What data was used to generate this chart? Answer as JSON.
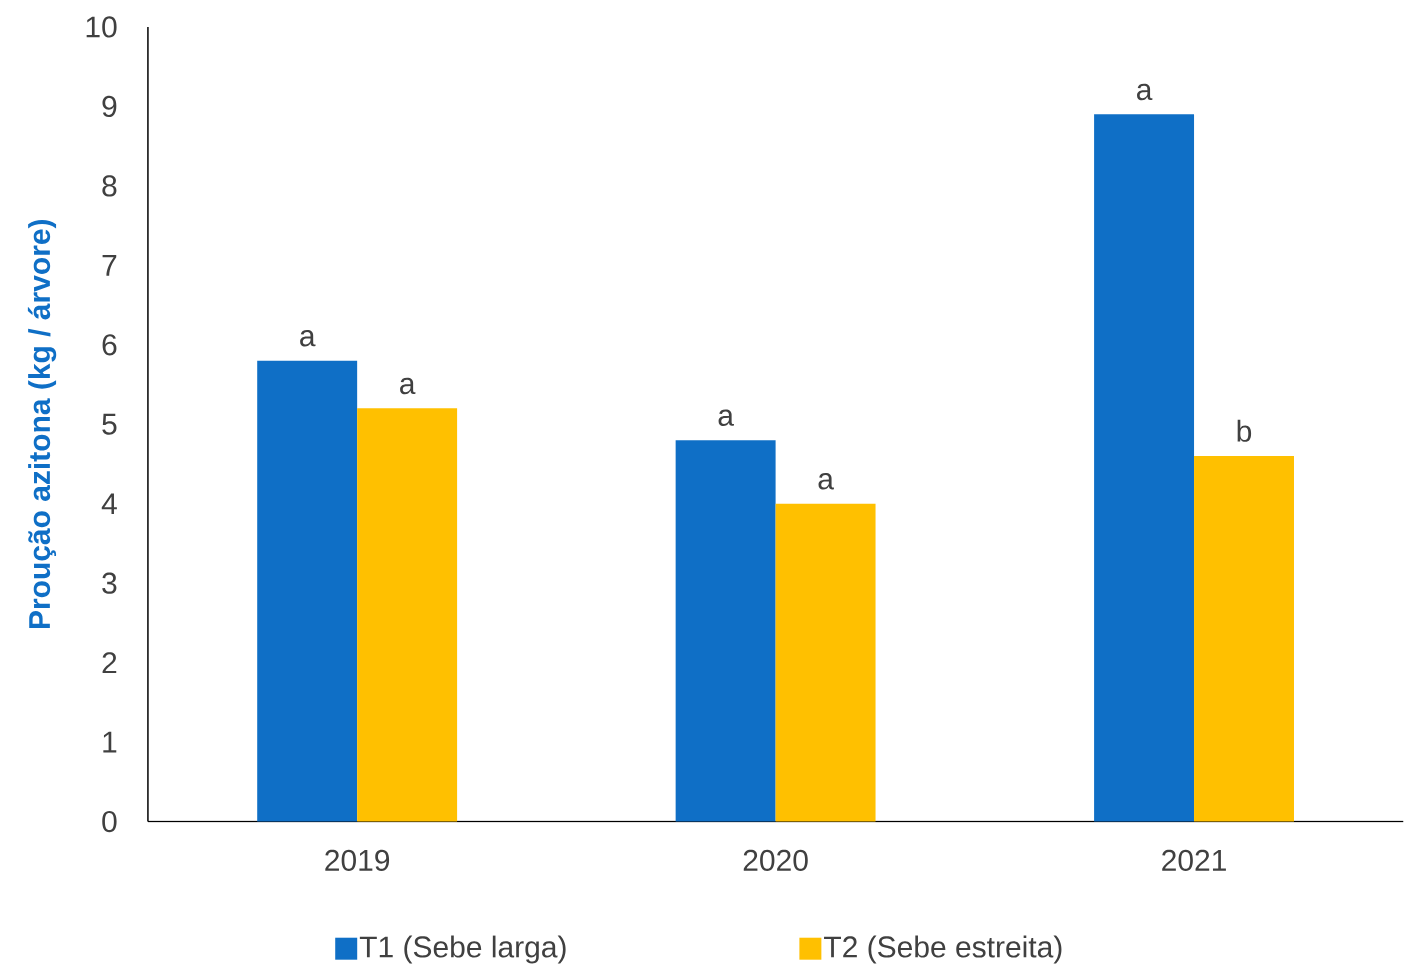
{
  "chart_data": {
    "type": "bar",
    "ylabel": "Proução azitona (kg / árvore)",
    "categories": [
      "2019",
      "2020",
      "2021"
    ],
    "series": [
      {
        "name": "T1 (Sebe larga)",
        "color": "#0f6fc6",
        "values": [
          5.8,
          4.8,
          8.9
        ]
      },
      {
        "name": "T2 (Sebe estreita)",
        "color": "#ffc000",
        "values": [
          5.2,
          4.0,
          4.6
        ]
      }
    ],
    "ylim": [
      0,
      10
    ],
    "yticks": [
      0,
      1,
      2,
      3,
      4,
      5,
      6,
      7,
      8,
      9,
      10
    ],
    "grid": false,
    "legend": "bottom",
    "annotations": [
      {
        "text": "a",
        "x": "2019",
        "y": 5.8
      },
      {
        "text": "a",
        "x": "2019",
        "y": 5.2
      },
      {
        "text": "a",
        "x": "2020",
        "y": 4.8
      },
      {
        "text": "a",
        "x": "2020",
        "y": 4.0
      },
      {
        "text": "a",
        "x": "2021",
        "y": 8.9
      },
      {
        "text": "b",
        "x": "2021",
        "y": 4.6
      }
    ]
  }
}
